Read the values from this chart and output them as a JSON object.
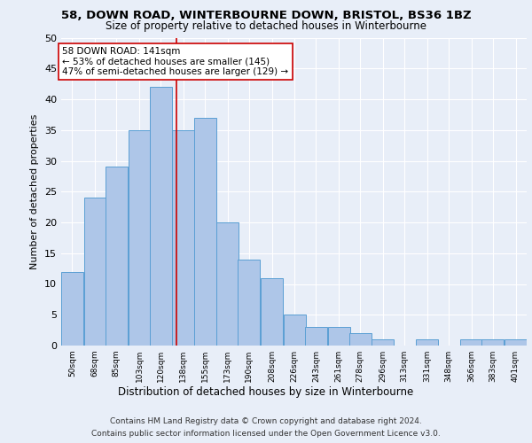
{
  "title1": "58, DOWN ROAD, WINTERBOURNE DOWN, BRISTOL, BS36 1BZ",
  "title2": "Size of property relative to detached houses in Winterbourne",
  "xlabel": "Distribution of detached houses by size in Winterbourne",
  "ylabel": "Number of detached properties",
  "footer1": "Contains HM Land Registry data © Crown copyright and database right 2024.",
  "footer2": "Contains public sector information licensed under the Open Government Licence v3.0.",
  "bin_labels": [
    "50sqm",
    "68sqm",
    "85sqm",
    "103sqm",
    "120sqm",
    "138sqm",
    "155sqm",
    "173sqm",
    "190sqm",
    "208sqm",
    "226sqm",
    "243sqm",
    "261sqm",
    "278sqm",
    "296sqm",
    "313sqm",
    "331sqm",
    "348sqm",
    "366sqm",
    "383sqm",
    "401sqm"
  ],
  "bin_edges": [
    50,
    68,
    85,
    103,
    120,
    138,
    155,
    173,
    190,
    208,
    226,
    243,
    261,
    278,
    296,
    313,
    331,
    348,
    366,
    383,
    401
  ],
  "bar_heights": [
    12,
    24,
    29,
    35,
    42,
    35,
    37,
    20,
    14,
    11,
    5,
    3,
    3,
    2,
    1,
    0,
    1,
    0,
    1,
    1,
    1
  ],
  "bar_color": "#aec6e8",
  "bar_edge_color": "#5a9fd4",
  "property_size": 141,
  "red_line_color": "#cc0000",
  "annotation_line1": "58 DOWN ROAD: 141sqm",
  "annotation_line2": "← 53% of detached houses are smaller (145)",
  "annotation_line3": "47% of semi-detached houses are larger (129) →",
  "annotation_box_color": "#ffffff",
  "annotation_box_edge": "#cc0000",
  "bg_color": "#e8eef8",
  "plot_bg_color": "#e8eef8",
  "grid_color": "#ffffff",
  "ylim": [
    0,
    50
  ],
  "yticks": [
    0,
    5,
    10,
    15,
    20,
    25,
    30,
    35,
    40,
    45,
    50
  ]
}
